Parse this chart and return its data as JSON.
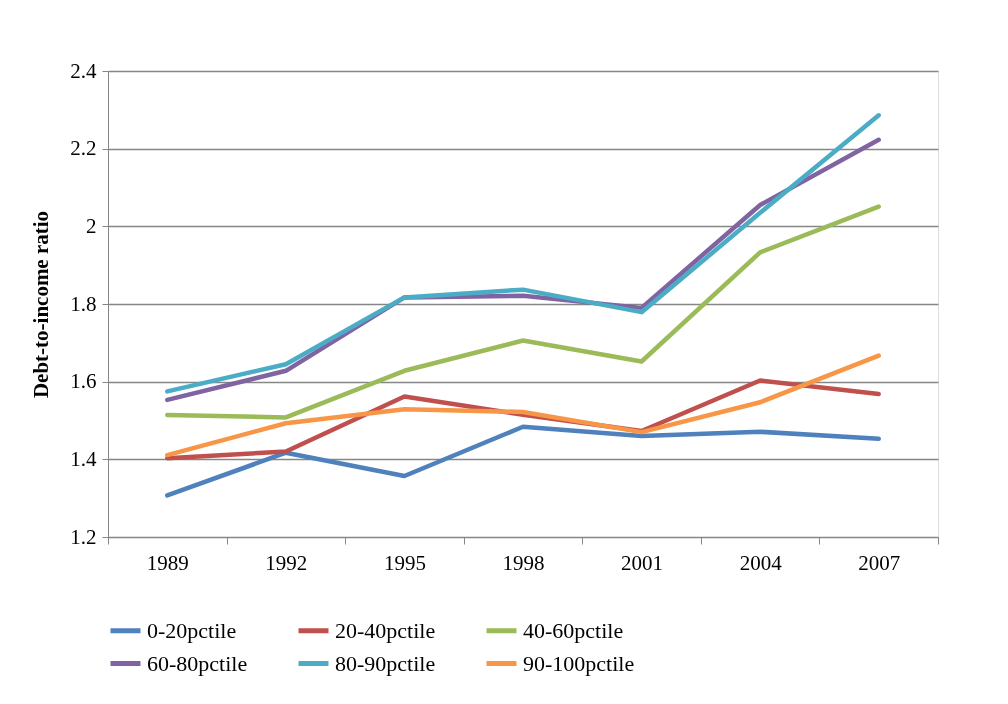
{
  "chart_data": {
    "type": "line",
    "ylabel": "Debt-to-income ratio",
    "categories": [
      "1989",
      "1992",
      "1995",
      "1998",
      "2001",
      "2004",
      "2007"
    ],
    "ylim": [
      1.2,
      2.4
    ],
    "yticks": [
      1.2,
      1.4,
      1.6,
      1.8,
      {
        "value": 2.0,
        "label": "2"
      },
      2.2,
      2.4
    ],
    "grid": "y",
    "legend": "bottom",
    "marker": "none",
    "line_style": "solid",
    "series": [
      {
        "name": "0-20pctile",
        "color": "#4f81bd",
        "values": [
          1.307,
          1.417,
          1.357,
          1.484,
          1.46,
          1.471,
          1.453
        ]
      },
      {
        "name": "20-40pctile",
        "color": "#c0504d",
        "values": [
          1.403,
          1.42,
          1.562,
          1.515,
          1.473,
          1.603,
          1.568
        ]
      },
      {
        "name": "40-60pctile",
        "color": "#9bbb59",
        "values": [
          1.514,
          1.508,
          1.628,
          1.706,
          1.652,
          1.933,
          2.051
        ]
      },
      {
        "name": "60-80pctile",
        "color": "#8064a2",
        "values": [
          1.553,
          1.628,
          1.817,
          1.821,
          1.79,
          2.055,
          2.223
        ]
      },
      {
        "name": "80-90pctile",
        "color": "#4bacc6",
        "values": [
          1.575,
          1.645,
          1.817,
          1.837,
          1.779,
          2.035,
          2.286
        ]
      },
      {
        "name": "90-100pctile",
        "color": "#f79646",
        "values": [
          1.411,
          1.493,
          1.529,
          1.522,
          1.47,
          1.547,
          1.667
        ]
      }
    ]
  }
}
